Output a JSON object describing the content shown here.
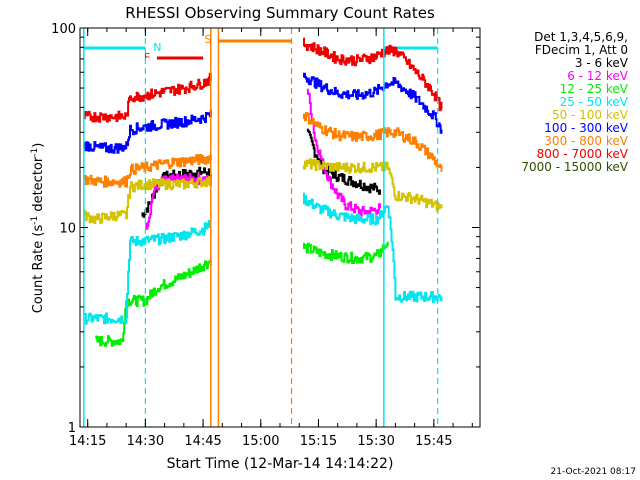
{
  "chart_data": {
    "type": "line",
    "title": "RHESSI Observing Summary Count Rates",
    "xlabel": "Start Time (12-Mar-14 14:14:22)",
    "ylabel": "Count Rate (s⁻¹ detector⁻¹)",
    "ylabel_main": "Count Rate (s",
    "ylabel_exp": "-1",
    "ylabel_mid": " detector",
    "ylabel_end": ")",
    "yscale": "log",
    "xlim": [
      "14:13",
      "15:57"
    ],
    "ylim": [
      1,
      100
    ],
    "x_ticks": [
      "14:15",
      "14:30",
      "14:45",
      "15:00",
      "15:15",
      "15:30",
      "15:45"
    ],
    "y_ticks": [
      "1",
      "10",
      "100"
    ],
    "legend_header": [
      "Det 1,3,4,5,6,9,",
      "FDecim 1, Att 0"
    ],
    "footer_date": "21-Oct-2021 08:17",
    "flags": {
      "N_label": "N",
      "F_label": "F",
      "S_label": "S",
      "night_color": "#00e5ee",
      "flare_color": "#ee0000",
      "saa_color": "#ff8000"
    },
    "series": [
      {
        "name": "3 - 6 keV",
        "color": "#000000",
        "points": [
          [
            "14:29",
            11.5
          ],
          [
            "14:31",
            13
          ],
          [
            "14:33",
            16
          ],
          [
            "14:35",
            18
          ],
          [
            "14:40",
            18.5
          ],
          [
            "14:45",
            19
          ],
          [
            "14:47",
            19
          ],
          [
            "15:12",
            30
          ],
          [
            "15:14",
            24
          ],
          [
            "15:16",
            20
          ],
          [
            "15:18",
            19
          ],
          [
            "15:20",
            18
          ],
          [
            "15:22",
            17.5
          ],
          [
            "15:24",
            17
          ],
          [
            "15:26",
            16.5
          ],
          [
            "15:28",
            16
          ],
          [
            "15:31",
            15.5
          ]
        ]
      },
      {
        "name": "6 - 12 keV",
        "color": "#ff00ff",
        "points": [
          [
            "14:30",
            10
          ],
          [
            "14:31",
            11.5
          ],
          [
            "14:32",
            15
          ],
          [
            "14:34",
            17
          ],
          [
            "14:40",
            17.5
          ],
          [
            "14:45",
            17.5
          ],
          [
            "14:47",
            17
          ],
          [
            "15:12",
            50
          ],
          [
            "15:14",
            28
          ],
          [
            "15:16",
            21
          ],
          [
            "15:18",
            17
          ],
          [
            "15:20",
            14.5
          ],
          [
            "15:22",
            13
          ],
          [
            "15:24",
            12.5
          ],
          [
            "15:26",
            12
          ],
          [
            "15:28",
            12
          ],
          [
            "15:31",
            12.5
          ]
        ]
      },
      {
        "name": "12 - 25 keV",
        "color": "#00ee00",
        "points": [
          [
            "14:17",
            2.7
          ],
          [
            "14:22",
            2.7
          ],
          [
            "14:24",
            2.7
          ],
          [
            "14:25",
            4.3
          ],
          [
            "14:30",
            4.3
          ],
          [
            "14:33",
            5.0
          ],
          [
            "14:38",
            5.5
          ],
          [
            "14:42",
            6.0
          ],
          [
            "14:45",
            6.5
          ],
          [
            "14:47",
            6.8
          ],
          [
            "15:11",
            8
          ],
          [
            "15:15",
            7.5
          ],
          [
            "15:20",
            7.2
          ],
          [
            "15:25",
            7.0
          ],
          [
            "15:30",
            7.2
          ],
          [
            "15:31",
            7.5
          ],
          [
            "15:33",
            8.5
          ]
        ]
      },
      {
        "name": "25 - 50 keV",
        "color": "#00e5ee",
        "points": [
          [
            "14:14",
            3.5
          ],
          [
            "14:18",
            3.5
          ],
          [
            "14:22",
            3.5
          ],
          [
            "14:25",
            3.5
          ],
          [
            "14:26",
            8.5
          ],
          [
            "14:30",
            8.6
          ],
          [
            "14:35",
            8.8
          ],
          [
            "14:40",
            9.2
          ],
          [
            "14:45",
            9.8
          ],
          [
            "14:47",
            10.5
          ],
          [
            "15:11",
            14
          ],
          [
            "15:15",
            12.5
          ],
          [
            "15:20",
            11.5
          ],
          [
            "15:25",
            11
          ],
          [
            "15:30",
            11
          ],
          [
            "15:31",
            11.5
          ],
          [
            "15:33",
            13
          ],
          [
            "15:35",
            4.5
          ],
          [
            "15:40",
            4.5
          ],
          [
            "15:45",
            4.5
          ],
          [
            "15:47",
            4.5
          ]
        ]
      },
      {
        "name": "50 - 100 keV",
        "color": "#d4c200",
        "points": [
          [
            "14:14",
            11.5
          ],
          [
            "14:17",
            11
          ],
          [
            "14:22",
            11.5
          ],
          [
            "14:25",
            11.5
          ],
          [
            "14:26",
            16
          ],
          [
            "14:30",
            16.5
          ],
          [
            "14:35",
            16.5
          ],
          [
            "14:40",
            16.5
          ],
          [
            "14:45",
            17
          ],
          [
            "14:47",
            17
          ],
          [
            "15:11",
            21
          ],
          [
            "15:15",
            20.5
          ],
          [
            "15:20",
            20
          ],
          [
            "15:25",
            20
          ],
          [
            "15:30",
            20
          ],
          [
            "15:31",
            20
          ],
          [
            "15:33",
            20
          ],
          [
            "15:35",
            14.5
          ],
          [
            "15:40",
            14
          ],
          [
            "15:45",
            13
          ],
          [
            "15:47",
            12.5
          ]
        ]
      },
      {
        "name": "100 - 300 keV",
        "color": "#0000ff",
        "points": [
          [
            "14:14",
            26
          ],
          [
            "14:18",
            25
          ],
          [
            "14:22",
            25
          ],
          [
            "14:25",
            25.5
          ],
          [
            "14:26",
            31
          ],
          [
            "14:30",
            32
          ],
          [
            "14:35",
            33
          ],
          [
            "14:40",
            34
          ],
          [
            "14:45",
            35.5
          ],
          [
            "14:47",
            37
          ],
          [
            "15:11",
            58
          ],
          [
            "15:15",
            52
          ],
          [
            "15:20",
            47
          ],
          [
            "15:25",
            46
          ],
          [
            "15:30",
            48
          ],
          [
            "15:31",
            50
          ],
          [
            "15:33",
            53
          ],
          [
            "15:35",
            53
          ],
          [
            "15:40",
            45
          ],
          [
            "15:45",
            36
          ],
          [
            "15:47",
            31
          ]
        ]
      },
      {
        "name": "300 - 800 keV",
        "color": "#ff8000",
        "points": [
          [
            "14:14",
            17.5
          ],
          [
            "14:18",
            17
          ],
          [
            "14:22",
            17
          ],
          [
            "14:25",
            17
          ],
          [
            "14:26",
            19.5
          ],
          [
            "14:30",
            20
          ],
          [
            "14:35",
            21
          ],
          [
            "14:40",
            21.5
          ],
          [
            "14:45",
            22
          ],
          [
            "14:47",
            22.5
          ],
          [
            "15:11",
            37
          ],
          [
            "15:15",
            32
          ],
          [
            "15:20",
            29
          ],
          [
            "15:25",
            28.5
          ],
          [
            "15:30",
            29
          ],
          [
            "15:31",
            29.5
          ],
          [
            "15:33",
            30
          ],
          [
            "15:35",
            30
          ],
          [
            "15:40",
            27
          ],
          [
            "15:45",
            22
          ],
          [
            "15:47",
            19
          ]
        ]
      },
      {
        "name": "800 - 7000 keV",
        "color": "#ee0000",
        "points": [
          [
            "14:14",
            36
          ],
          [
            "14:18",
            36
          ],
          [
            "14:22",
            36
          ],
          [
            "14:25",
            36
          ],
          [
            "14:26",
            45
          ],
          [
            "14:30",
            46
          ],
          [
            "14:35",
            48
          ],
          [
            "14:40",
            50
          ],
          [
            "14:45",
            53
          ],
          [
            "14:47",
            56
          ],
          [
            "15:11",
            84
          ],
          [
            "15:15",
            78
          ],
          [
            "15:20",
            70
          ],
          [
            "15:25",
            69
          ],
          [
            "15:30",
            72
          ],
          [
            "15:31",
            75
          ],
          [
            "15:33",
            77
          ],
          [
            "15:35",
            77
          ],
          [
            "15:40",
            61
          ],
          [
            "15:45",
            47
          ],
          [
            "15:47",
            39
          ]
        ]
      },
      {
        "name": "7000 - 15000 keV",
        "color": "#2f4f00",
        "points": []
      }
    ],
    "night_intervals": [
      [
        "14:14",
        "14:30"
      ],
      [
        "15:32",
        "15:46"
      ]
    ],
    "flare_interval": [
      "14:33",
      "14:45"
    ],
    "saa_interval": [
      "14:49",
      "15:08"
    ],
    "dashed_markers": [
      {
        "time": "14:30",
        "color": "#00e5ee"
      },
      {
        "time": "15:08",
        "color": "#ff8000"
      },
      {
        "time": "15:46",
        "color": "#00e5ee"
      }
    ],
    "solid_markers": [
      {
        "time": "14:14",
        "color": "#00e5ee"
      },
      {
        "time": "14:47",
        "color": "#ff8000"
      },
      {
        "time": "14:49",
        "color": "#ff8000"
      },
      {
        "time": "15:32",
        "color": "#00e5ee"
      }
    ]
  }
}
